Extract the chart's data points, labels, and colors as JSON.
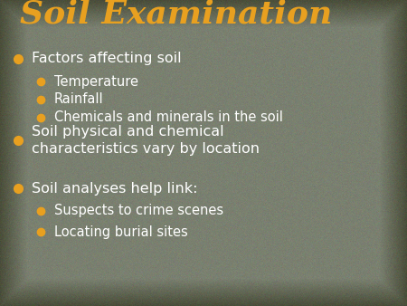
{
  "title": "Soil Examination",
  "title_color": "#E8A020",
  "title_fontsize": 26,
  "title_fontfamily": "serif",
  "bg_outer_color": "#4a4e3a",
  "bg_inner_color": "#7a8070",
  "bullet_color_main": "#E8A020",
  "bullet_color_sub": "#E8A020",
  "text_color_main": "#ffffff",
  "text_color_sub": "#ffffff",
  "items": [
    {
      "level": 1,
      "text": "Factors affecting soil"
    },
    {
      "level": 2,
      "text": "Temperature"
    },
    {
      "level": 2,
      "text": "Rainfall"
    },
    {
      "level": 2,
      "text": "Chemicals and minerals in the soil"
    },
    {
      "level": 1,
      "text": "Soil physical and chemical\ncharacteristics vary by location"
    },
    {
      "level": 1,
      "text": "Soil analyses help link:"
    },
    {
      "level": 2,
      "text": "Suspects to crime scenes"
    },
    {
      "level": 2,
      "text": "Locating burial sites"
    }
  ],
  "fontsize_main": 11.5,
  "fontsize_sub": 10.5
}
